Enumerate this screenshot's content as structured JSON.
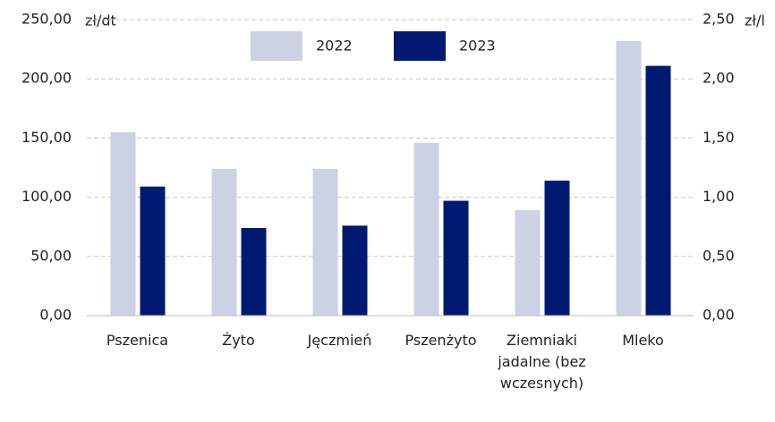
{
  "chart_data": {
    "type": "bar",
    "y_label": "zł/dt",
    "y2_label": "zł/l",
    "categories": [
      "Pszenica",
      "Żyto",
      "Jęczmień",
      "Pszenżyto",
      "Ziemniaki jadalne (bez wczesnych)",
      "Mleko"
    ],
    "category_axis": [
      "y",
      "y",
      "y",
      "y",
      "y",
      "y2"
    ],
    "series": [
      {
        "name": "2022",
        "color": "#ccd1e4",
        "values": [
          155,
          124,
          124,
          146,
          89,
          2.32
        ]
      },
      {
        "name": "2023",
        "color": "#001a72",
        "values": [
          109,
          74,
          76,
          97,
          114,
          2.11
        ]
      }
    ],
    "ylim": [
      0,
      250
    ],
    "yticks": [
      {
        "value": 0,
        "label": "0,00"
      },
      {
        "value": 50,
        "label": "50,00"
      },
      {
        "value": 100,
        "label": "100,00"
      },
      {
        "value": 150,
        "label": "150,00"
      },
      {
        "value": 200,
        "label": "200,00"
      },
      {
        "value": 250,
        "label": "250,00"
      }
    ],
    "y2lim": [
      0,
      2.5
    ],
    "y2ticks": [
      {
        "value": 0,
        "label": "0,00"
      },
      {
        "value": 0.5,
        "label": "0,50"
      },
      {
        "value": 1,
        "label": "1,00"
      },
      {
        "value": 1.5,
        "label": "1,50"
      },
      {
        "value": 2,
        "label": "2,00"
      },
      {
        "value": 2.5,
        "label": "2,50"
      }
    ],
    "grid": true,
    "legend": "top"
  }
}
